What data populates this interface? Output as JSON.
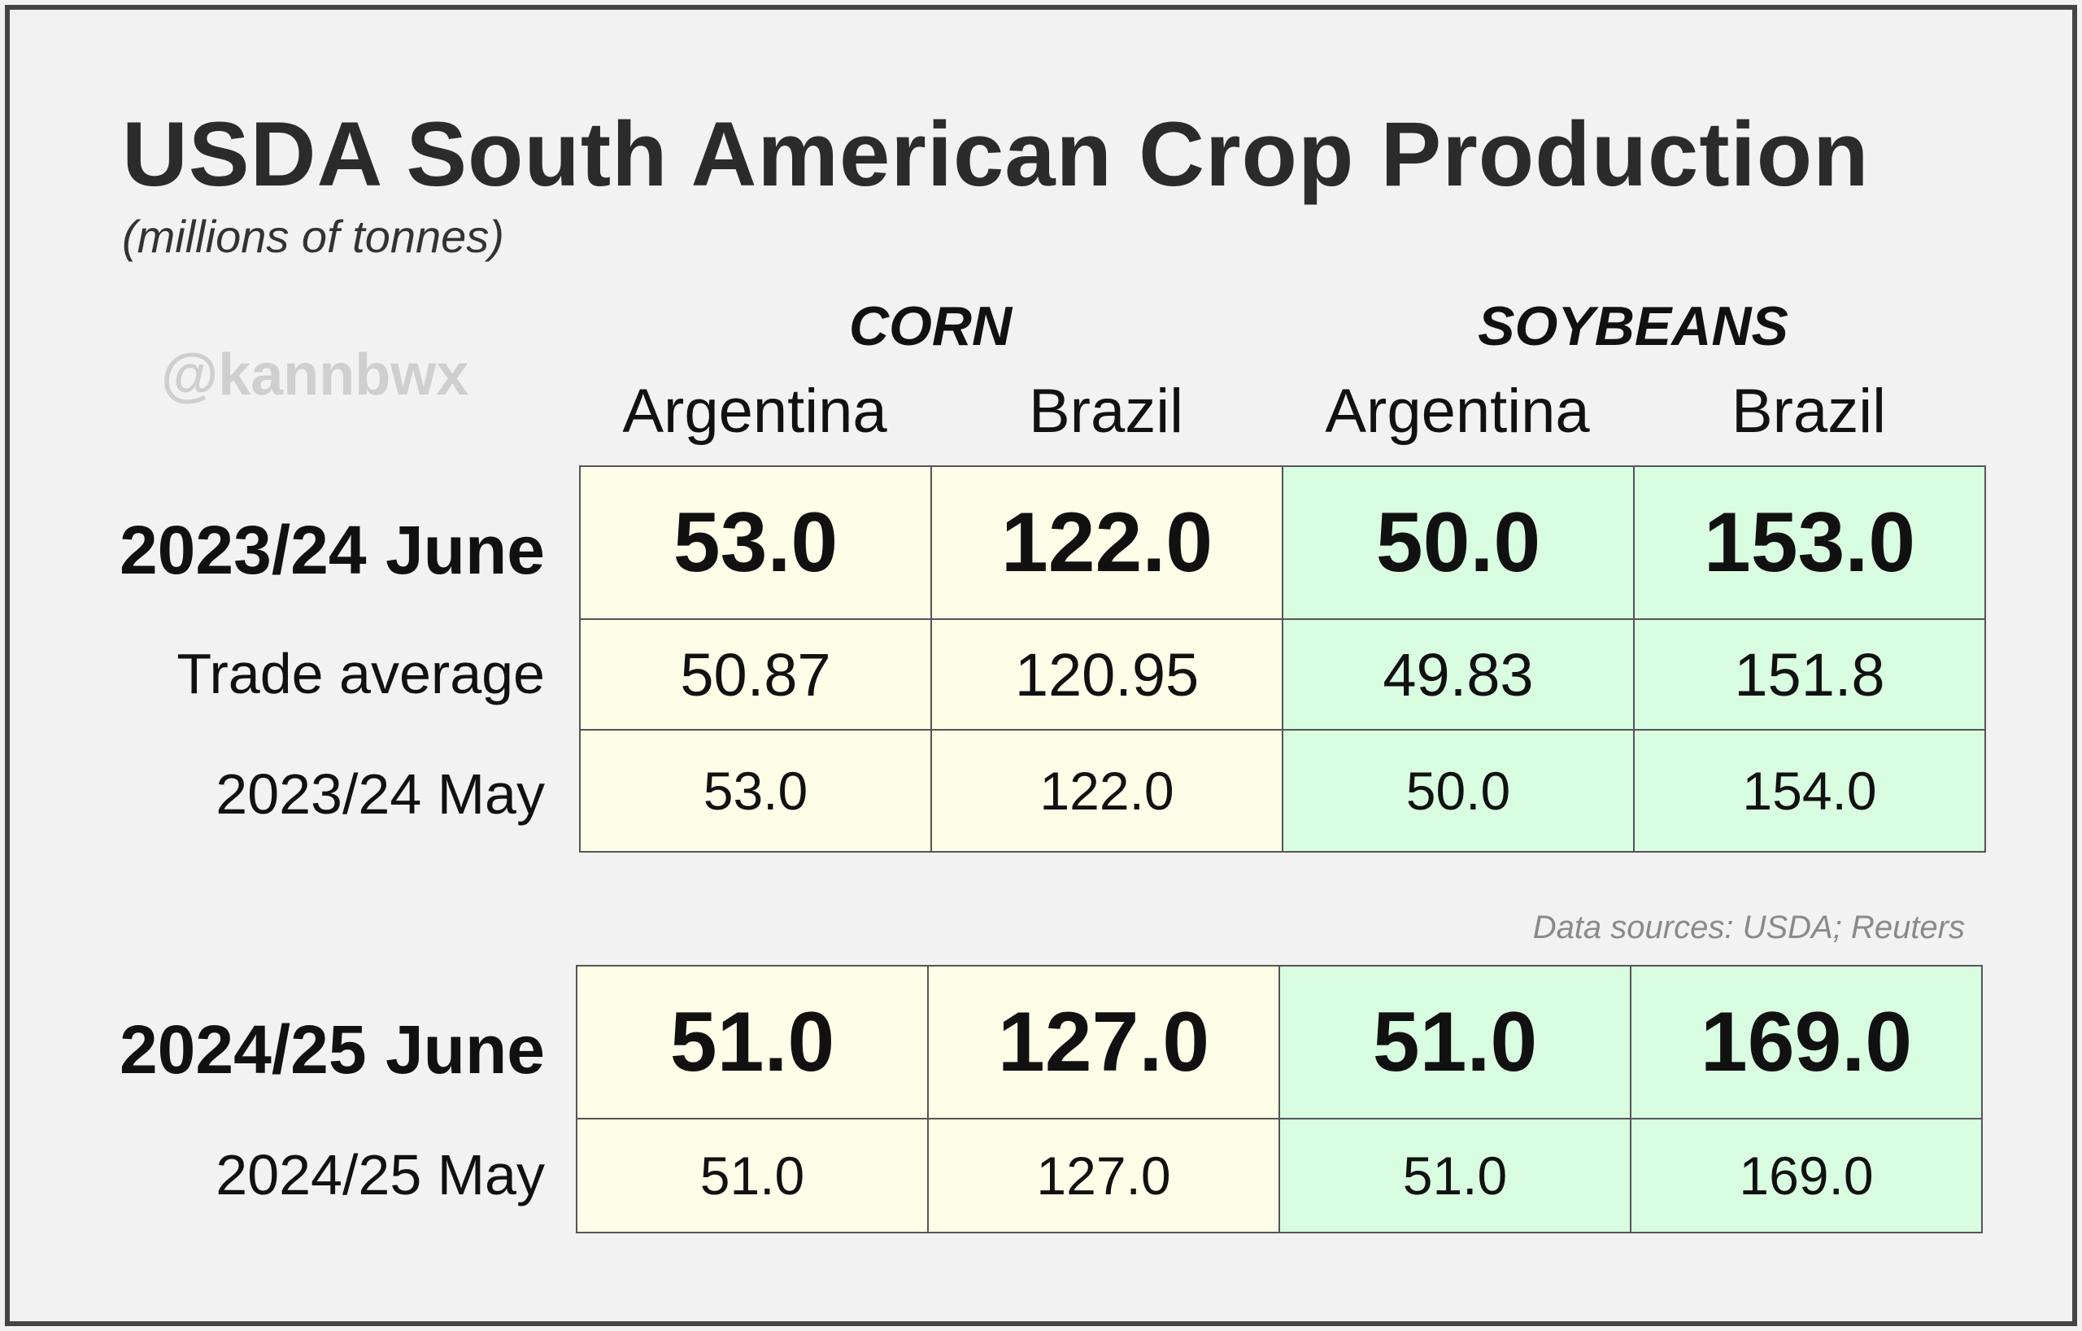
{
  "chart_data": {
    "type": "table",
    "title": "USDA South American Crop Production",
    "subtitle": "(millions of tonnes)",
    "watermark": "@kannbwx",
    "source": "Data sources: USDA; Reuters",
    "groups": [
      "CORN",
      "SOYBEANS"
    ],
    "columns": [
      "Argentina",
      "Brazil",
      "Argentina",
      "Brazil"
    ],
    "tables": [
      {
        "rows": [
          {
            "label": "2023/24 June",
            "values": [
              "53.0",
              "122.0",
              "50.0",
              "153.0"
            ]
          },
          {
            "label": "Trade average",
            "values": [
              "50.87",
              "120.95",
              "49.83",
              "151.8"
            ]
          },
          {
            "label": "2023/24 May",
            "values": [
              "53.0",
              "122.0",
              "50.0",
              "154.0"
            ]
          }
        ]
      },
      {
        "rows": [
          {
            "label": "2024/25 June",
            "values": [
              "51.0",
              "127.0",
              "51.0",
              "169.0"
            ]
          },
          {
            "label": "2024/25 May",
            "values": [
              "51.0",
              "127.0",
              "51.0",
              "169.0"
            ]
          }
        ]
      }
    ],
    "colors": {
      "corn_fill": "#fefee8",
      "soybeans_fill": "#d8fde1",
      "border": "#555555"
    }
  }
}
